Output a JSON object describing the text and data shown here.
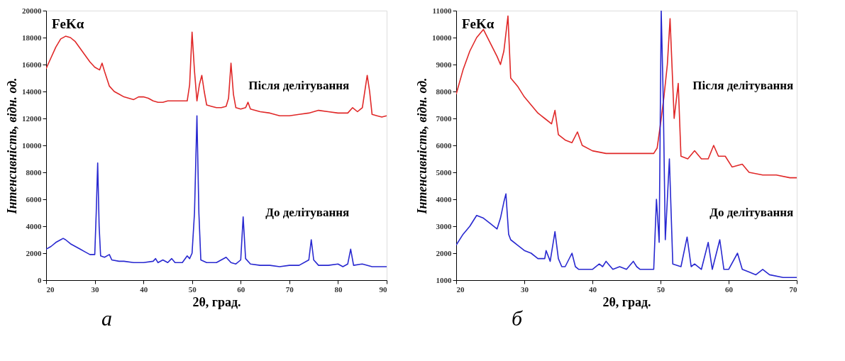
{
  "chart_data": [
    {
      "type": "line",
      "title": "а",
      "xlabel": "2θ, град.",
      "ylabel": "Інтенсивність, відн. од.",
      "annotations": [
        "FeKα"
      ],
      "legend": false,
      "grid": false,
      "xlim": [
        20,
        90
      ],
      "xticks": [
        20,
        30,
        40,
        50,
        60,
        70,
        80,
        90
      ],
      "ylim": [
        0,
        20000
      ],
      "yticks": [
        0,
        2000,
        4000,
        6000,
        8000,
        10000,
        12000,
        14000,
        16000,
        18000,
        20000
      ],
      "series": [
        {
          "name": "Після делітування",
          "color": "#e02828",
          "x": [
            20,
            21,
            22,
            23,
            24,
            25,
            26,
            27,
            28,
            29,
            30,
            31,
            31.5,
            32,
            33,
            34,
            35,
            36,
            37,
            38,
            39,
            40,
            41,
            42,
            43,
            44,
            45,
            46,
            47,
            48,
            49,
            49.5,
            50,
            50.5,
            51,
            51.5,
            52,
            52.5,
            53,
            54,
            55,
            56,
            57,
            57.5,
            58,
            58.5,
            59,
            60,
            61,
            61.5,
            62,
            64,
            66,
            68,
            70,
            72,
            74,
            76,
            78,
            80,
            82,
            83,
            84,
            85,
            86,
            86.5,
            87,
            88,
            89,
            90
          ],
          "values": [
            15700,
            16500,
            17300,
            17900,
            18100,
            18000,
            17700,
            17200,
            16700,
            16200,
            15800,
            15600,
            16100,
            15500,
            14400,
            14000,
            13800,
            13600,
            13500,
            13400,
            13600,
            13600,
            13500,
            13300,
            13200,
            13200,
            13300,
            13300,
            13300,
            13300,
            13300,
            14500,
            18400,
            15500,
            13300,
            14500,
            15200,
            14000,
            13000,
            12900,
            12800,
            12800,
            12900,
            13500,
            16100,
            13800,
            12800,
            12700,
            12800,
            13200,
            12700,
            12500,
            12400,
            12200,
            12200,
            12300,
            12400,
            12600,
            12500,
            12400,
            12400,
            12800,
            12500,
            12800,
            15200,
            14000,
            12300,
            12200,
            12100,
            12200
          ]
        },
        {
          "name": "До делітування",
          "color": "#2828d0",
          "x": [
            20,
            21,
            22,
            23,
            23.5,
            24,
            25,
            26,
            27,
            28,
            29,
            30,
            30.3,
            30.6,
            30.9,
            31.2,
            32,
            33,
            33.5,
            35,
            36,
            38,
            40,
            42,
            42.5,
            43,
            44,
            45,
            45.8,
            46.5,
            48,
            49,
            49.5,
            50,
            50.5,
            51,
            51.4,
            51.8,
            53,
            55,
            57,
            58,
            59,
            60,
            60.5,
            61,
            62,
            64,
            66,
            68,
            70,
            72,
            74,
            74.5,
            75,
            76,
            78,
            80,
            81,
            82,
            82.6,
            83.2,
            85,
            87,
            90
          ],
          "values": [
            2300,
            2500,
            2800,
            3000,
            3100,
            3000,
            2700,
            2500,
            2300,
            2100,
            1900,
            1900,
            5000,
            8700,
            4000,
            1800,
            1700,
            1900,
            1500,
            1400,
            1400,
            1300,
            1300,
            1400,
            1600,
            1300,
            1500,
            1300,
            1600,
            1300,
            1300,
            1800,
            1600,
            2000,
            5000,
            12200,
            5000,
            1500,
            1300,
            1300,
            1700,
            1300,
            1200,
            1500,
            4700,
            1600,
            1200,
            1100,
            1100,
            1000,
            1100,
            1100,
            1500,
            3000,
            1500,
            1100,
            1100,
            1200,
            1000,
            1200,
            2300,
            1100,
            1200,
            1000,
            1000
          ]
        }
      ]
    },
    {
      "type": "line",
      "title": "б",
      "xlabel": "2θ, град.",
      "ylabel": "Інтенсивність, відн. од.",
      "annotations": [
        "FeKα"
      ],
      "legend": false,
      "grid": false,
      "xlim": [
        20,
        70
      ],
      "xticks": [
        20,
        30,
        40,
        50,
        60,
        70
      ],
      "ylim": [
        1000,
        11000
      ],
      "yticks": [
        1000,
        2000,
        3000,
        4000,
        5000,
        6000,
        7000,
        8000,
        9000,
        10000,
        11000
      ],
      "series": [
        {
          "name": "Після делітування",
          "color": "#e02828",
          "x": [
            20,
            21,
            22,
            23,
            24,
            25,
            26,
            26.5,
            27,
            27.6,
            28,
            29,
            30,
            31,
            32,
            33,
            34,
            34.5,
            35,
            36,
            37,
            37.8,
            38.5,
            40,
            42,
            44,
            46,
            48,
            49,
            49.5,
            50,
            50.5,
            51,
            51.4,
            52,
            52.6,
            53,
            54,
            55,
            56,
            57,
            57.8,
            58.5,
            59.5,
            60.5,
            62,
            63,
            65,
            67,
            69,
            70
          ],
          "values": [
            7900,
            8800,
            9500,
            10000,
            10300,
            9800,
            9300,
            9000,
            9500,
            10800,
            8500,
            8200,
            7800,
            7500,
            7200,
            7000,
            6800,
            7300,
            6400,
            6200,
            6100,
            6500,
            6000,
            5800,
            5700,
            5700,
            5700,
            5700,
            5700,
            5900,
            6800,
            7800,
            9000,
            10700,
            7000,
            8300,
            5600,
            5500,
            5800,
            5500,
            5500,
            6000,
            5600,
            5600,
            5200,
            5300,
            5000,
            4900,
            4900,
            4800,
            4800
          ]
        },
        {
          "name": "До делітування",
          "color": "#2828d0",
          "x": [
            20,
            21,
            22,
            23,
            24,
            25,
            26,
            26.5,
            27,
            27.3,
            27.7,
            28,
            29,
            30,
            31,
            32,
            33,
            33.2,
            33.8,
            34.5,
            35,
            35.5,
            36,
            37,
            37.5,
            38,
            40,
            41,
            41.5,
            42,
            43,
            44,
            45,
            46,
            46.5,
            47,
            49,
            49.4,
            49.8,
            50.1,
            50.4,
            50.7,
            51.3,
            51.8,
            53,
            53.9,
            54.5,
            55,
            56,
            57,
            57.6,
            58.7,
            59.3,
            60,
            61.3,
            62,
            63,
            64,
            65,
            66,
            68,
            70
          ],
          "values": [
            2300,
            2700,
            3000,
            3400,
            3300,
            3100,
            2900,
            3300,
            3900,
            4200,
            2700,
            2500,
            2300,
            2100,
            2000,
            1800,
            1800,
            2100,
            1700,
            2800,
            1800,
            1500,
            1500,
            2000,
            1500,
            1400,
            1400,
            1600,
            1500,
            1700,
            1400,
            1500,
            1400,
            1700,
            1500,
            1400,
            1400,
            4000,
            2400,
            11000,
            7700,
            2500,
            5500,
            1600,
            1500,
            2600,
            1500,
            1600,
            1400,
            2400,
            1400,
            2500,
            1400,
            1400,
            2000,
            1400,
            1300,
            1200,
            1400,
            1200,
            1100,
            1100
          ]
        }
      ]
    }
  ]
}
